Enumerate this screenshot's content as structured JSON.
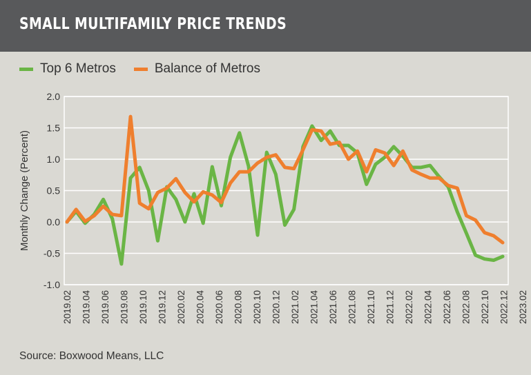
{
  "title": "SMALL MULTIFAMILY PRICE TRENDS",
  "source": "Source: Boxwood Means, LLC",
  "colors": {
    "top6": "#6ab545",
    "balance": "#ef7f2e",
    "title_bar": "#58595b",
    "background": "#dad9d3"
  },
  "chart_data": {
    "type": "line",
    "title": "SMALL MULTIFAMILY PRICE TRENDS",
    "xlabel": "",
    "ylabel": "Monthly Change (Percent)",
    "ylim": [
      -1.0,
      2.0
    ],
    "yticks": [
      "2.0",
      "1.5",
      "1.0",
      "0.5",
      "0.0",
      "-0.5",
      "-1.0"
    ],
    "grid": true,
    "legend": "top-left",
    "x_tick_labels": [
      "2019.02",
      "2019.04",
      "2019.06",
      "2019.08",
      "2019.10",
      "2019.12",
      "2020.02",
      "2020.04",
      "2020.06",
      "2020.08",
      "2020.10",
      "2020.12",
      "2021.02",
      "2021.04",
      "2021.06",
      "2021.08",
      "2021.10",
      "2021.12",
      "2022.02",
      "2022.04",
      "2022.06",
      "2022.08",
      "2022.10",
      "2022.12",
      "2023.02"
    ],
    "x": [
      "2019.02",
      "2019.03",
      "2019.04",
      "2019.05",
      "2019.06",
      "2019.07",
      "2019.08",
      "2019.09",
      "2019.10",
      "2019.11",
      "2019.12",
      "2020.01",
      "2020.02",
      "2020.03",
      "2020.04",
      "2020.05",
      "2020.06",
      "2020.07",
      "2020.08",
      "2020.09",
      "2020.10",
      "2020.11",
      "2020.12",
      "2021.01",
      "2021.02",
      "2021.03",
      "2021.04",
      "2021.05",
      "2021.06",
      "2021.07",
      "2021.08",
      "2021.09",
      "2021.10",
      "2021.11",
      "2021.12",
      "2022.01",
      "2022.02",
      "2022.03",
      "2022.04",
      "2022.05",
      "2022.06",
      "2022.07",
      "2022.08",
      "2022.09",
      "2022.10",
      "2022.11",
      "2022.12",
      "2023.01",
      "2023.02"
    ],
    "series": [
      {
        "name": "Top 6 Metros",
        "values": [
          0.0,
          0.17,
          -0.02,
          0.12,
          0.36,
          0.05,
          -0.67,
          0.7,
          0.87,
          0.5,
          -0.3,
          0.56,
          0.36,
          0.0,
          0.45,
          -0.02,
          0.88,
          0.26,
          1.03,
          1.42,
          0.89,
          -0.21,
          1.11,
          0.76,
          -0.05,
          0.2,
          1.2,
          1.53,
          1.3,
          1.45,
          1.22,
          1.22,
          1.1,
          0.6,
          0.92,
          1.03,
          1.2,
          1.05,
          0.87,
          0.87,
          0.9,
          0.72,
          0.56,
          0.16,
          -0.18,
          -0.53,
          -0.59,
          -0.61,
          -0.55
        ]
      },
      {
        "name": "Balance of Metros",
        "values": [
          0.0,
          0.2,
          0.01,
          0.1,
          0.25,
          0.12,
          0.1,
          1.68,
          0.3,
          0.21,
          0.47,
          0.54,
          0.69,
          0.47,
          0.32,
          0.48,
          0.43,
          0.31,
          0.62,
          0.8,
          0.8,
          0.94,
          1.03,
          1.07,
          0.87,
          0.85,
          1.15,
          1.47,
          1.45,
          1.24,
          1.27,
          1.0,
          1.13,
          0.8,
          1.15,
          1.1,
          0.9,
          1.13,
          0.83,
          0.76,
          0.7,
          0.7,
          0.58,
          0.54,
          0.1,
          0.03,
          -0.17,
          -0.22,
          -0.33
        ]
      }
    ]
  }
}
